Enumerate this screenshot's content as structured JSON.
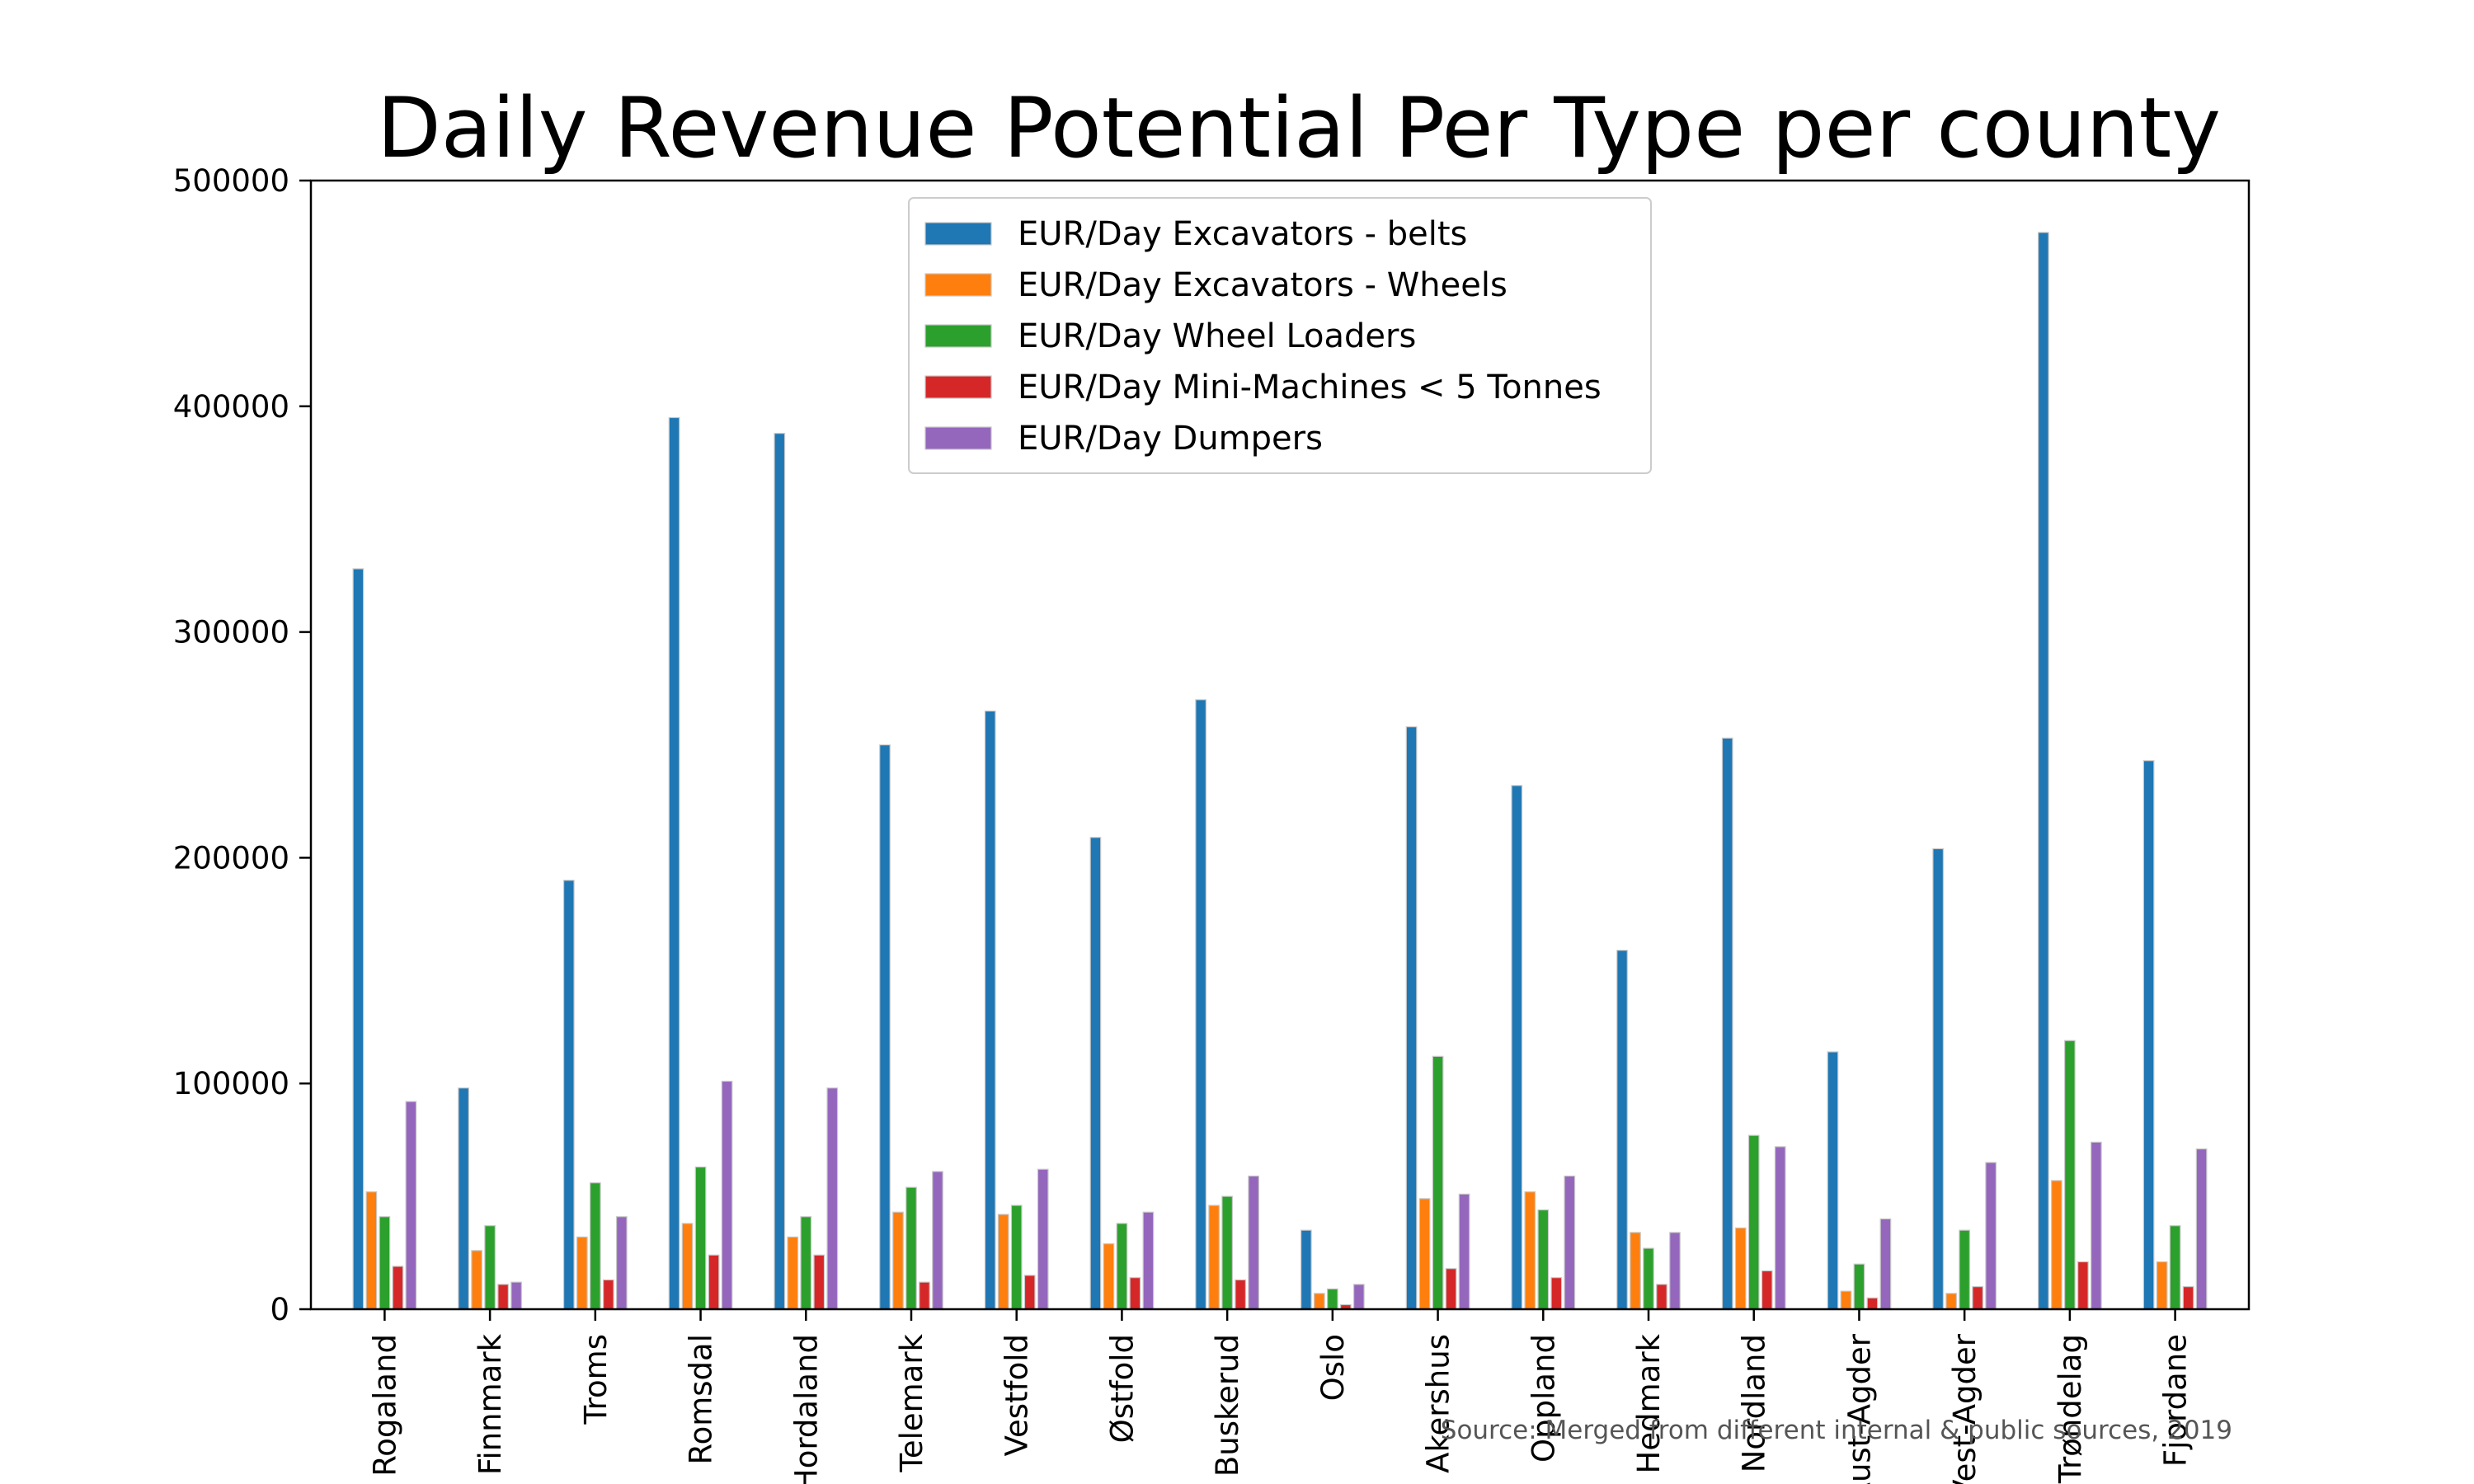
{
  "chart_data": {
    "type": "bar",
    "title": "Daily Revenue Potential Per Type per county",
    "xlabel": "",
    "ylabel": "",
    "ylim": [
      0,
      500000
    ],
    "yticks": [
      0,
      100000,
      200000,
      300000,
      400000,
      500000
    ],
    "ytick_labels": [
      "0",
      "100000",
      "200000",
      "300000",
      "400000",
      "500000"
    ],
    "grid": false,
    "legend_position": "top-center",
    "categories": [
      "Rogaland",
      "Finnmark",
      "Troms",
      "Romsdal",
      "Hordaland",
      "Telemark",
      "Vestfold",
      "Østfold",
      "Buskerud",
      "Oslo",
      "Akershus",
      "Oppland",
      "Hedmark",
      "Nordland",
      "Aust-Agder",
      "Vest-Agder",
      "Trøndelag",
      "Fjordane"
    ],
    "series": [
      {
        "name": "EUR/Day Excavators - belts",
        "color": "#1f77b4",
        "values": [
          328000,
          98000,
          190000,
          395000,
          388000,
          250000,
          265000,
          209000,
          270000,
          35000,
          258000,
          232000,
          159000,
          253000,
          114000,
          204000,
          477000,
          243000
        ]
      },
      {
        "name": "EUR/Day Excavators - Wheels",
        "color": "#ff7f0e",
        "values": [
          52000,
          26000,
          32000,
          38000,
          32000,
          43000,
          42000,
          29000,
          46000,
          7000,
          49000,
          52000,
          34000,
          36000,
          8000,
          7000,
          57000,
          21000
        ]
      },
      {
        "name": "EUR/Day Wheel Loaders",
        "color": "#2ca02c",
        "values": [
          41000,
          37000,
          56000,
          63000,
          41000,
          54000,
          46000,
          38000,
          50000,
          9000,
          112000,
          44000,
          27000,
          77000,
          20000,
          35000,
          119000,
          37000
        ]
      },
      {
        "name": "EUR/Day Mini-Machines < 5 Tonnes",
        "color": "#d62728",
        "values": [
          19000,
          11000,
          13000,
          24000,
          24000,
          12000,
          15000,
          14000,
          13000,
          2000,
          18000,
          14000,
          11000,
          17000,
          5000,
          10000,
          21000,
          10000
        ]
      },
      {
        "name": "EUR/Day Dumpers",
        "color": "#9467bd",
        "values": [
          92000,
          12000,
          41000,
          101000,
          98000,
          61000,
          62000,
          43000,
          59000,
          11000,
          51000,
          59000,
          34000,
          72000,
          40000,
          65000,
          74000,
          71000
        ]
      }
    ],
    "source_note": "Source: Merged from different internal & public sources, 2019"
  }
}
